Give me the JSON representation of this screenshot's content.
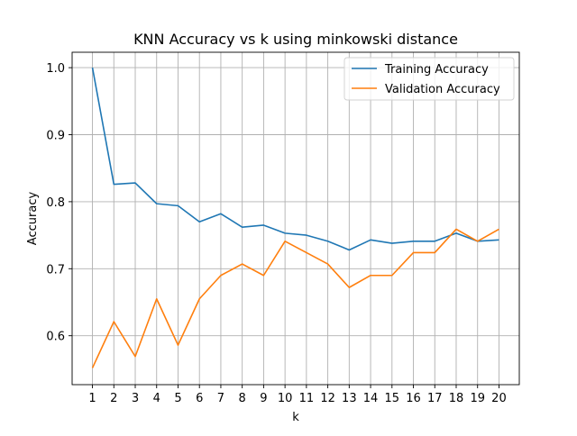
{
  "chart_data": {
    "type": "line",
    "title": "KNN Accuracy vs k using minkowski distance",
    "xlabel": "k",
    "ylabel": "Accuracy",
    "x": [
      1,
      2,
      3,
      4,
      5,
      6,
      7,
      8,
      9,
      10,
      11,
      12,
      13,
      14,
      15,
      16,
      17,
      18,
      19,
      20
    ],
    "xlim": [
      0.05,
      20.95
    ],
    "ylim": [
      0.527,
      1.023
    ],
    "yticks": [
      0.6,
      0.7,
      0.8,
      0.9,
      1.0
    ],
    "ytick_labels": [
      "0.6",
      "0.7",
      "0.8",
      "0.9",
      "1.0"
    ],
    "grid": true,
    "legend_position": "top-right",
    "series": [
      {
        "name": "Training Accuracy",
        "color": "#1f77b4",
        "values": [
          1.0,
          0.826,
          0.828,
          0.797,
          0.794,
          0.77,
          0.782,
          0.762,
          0.765,
          0.753,
          0.75,
          0.741,
          0.728,
          0.743,
          0.738,
          0.741,
          0.741,
          0.753,
          0.741,
          0.743
        ]
      },
      {
        "name": "Validation Accuracy",
        "color": "#ff7f0e",
        "values": [
          0.552,
          0.621,
          0.569,
          0.655,
          0.586,
          0.655,
          0.69,
          0.707,
          0.69,
          0.741,
          0.724,
          0.707,
          0.672,
          0.69,
          0.69,
          0.724,
          0.724,
          0.759,
          0.741,
          0.759
        ]
      }
    ]
  }
}
